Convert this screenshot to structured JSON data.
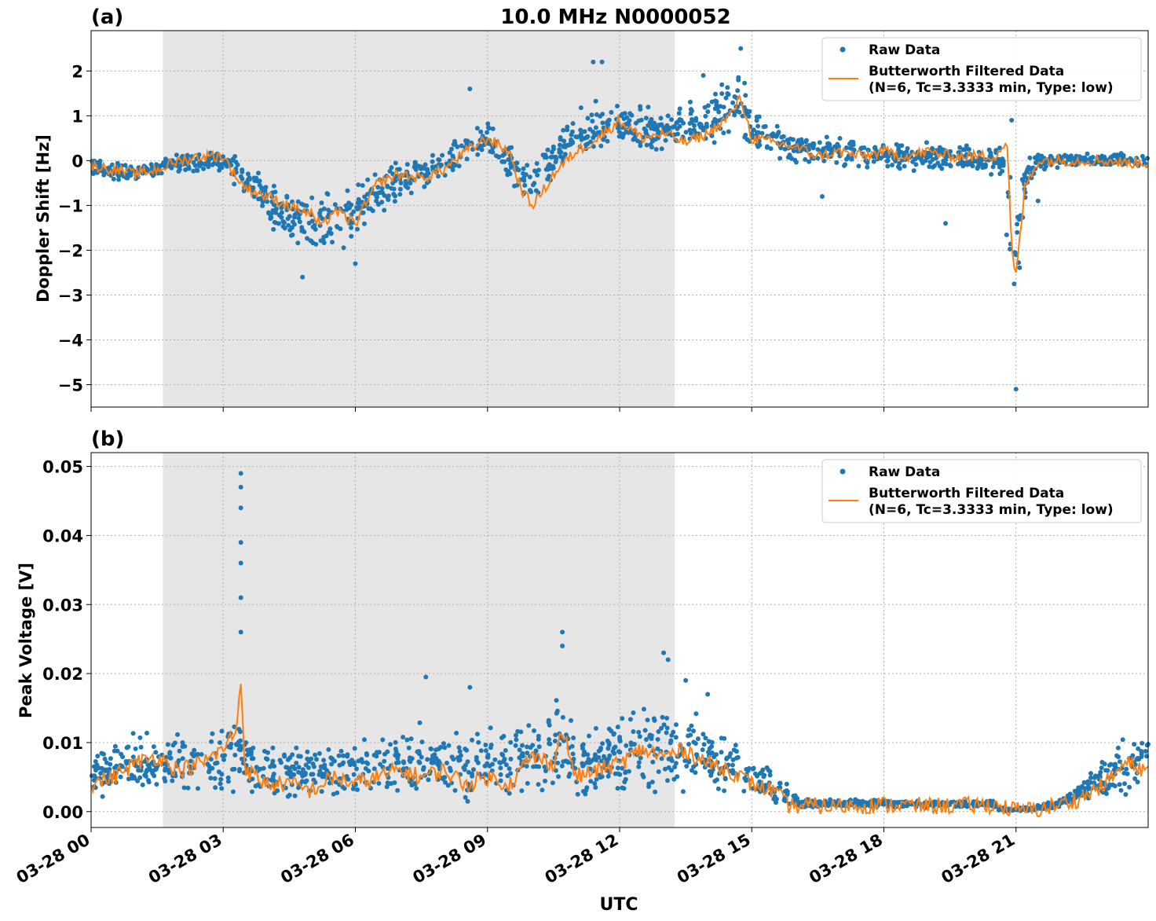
{
  "figure": {
    "title": "10.0 MHz N0000052",
    "xlabel": "UTC",
    "x_ticks": [
      "03-28 00",
      "03-28 03",
      "03-28 06",
      "03-28 09",
      "03-28 12",
      "03-28 15",
      "03-28 18",
      "03-28 21"
    ],
    "shaded_region_hours": [
      1.63,
      13.25
    ],
    "colors": {
      "raw": "#1f77b4",
      "filtered": "#ff7f0e",
      "shade": "#e6e6e6",
      "grid": "#b0b0b0"
    }
  },
  "chart_data": [
    {
      "panel_label": "(a)",
      "type": "scatter",
      "ylabel": "Doppler Shift [Hz]",
      "xlim_hours": [
        0,
        24
      ],
      "ylim": [
        -5.5,
        2.9
      ],
      "y_ticks": [
        2,
        1,
        0,
        -1,
        -2,
        -3,
        -4,
        -5
      ],
      "y_tick_labels": [
        "2",
        "1",
        "0",
        "−1",
        "−2",
        "−3",
        "−4",
        "−5"
      ],
      "grid": true,
      "legend_position": "upper right",
      "legend": {
        "raw": "Raw Data",
        "filtered_line1": "Butterworth Filtered Data",
        "filtered_line2": "(N=6, Tc=3.3333 min, Type: low)"
      },
      "series": [
        {
          "name": "Butterworth Filtered Data",
          "x": [
            0,
            0.5,
            1,
            1.5,
            2,
            2.5,
            3,
            3.25,
            3.5,
            4,
            4.5,
            5,
            5.25,
            5.5,
            6,
            6.5,
            7,
            7.5,
            8,
            8.5,
            9,
            9.5,
            9.75,
            10,
            10.25,
            10.5,
            11,
            11.5,
            12,
            12.5,
            13,
            13.5,
            14,
            14.5,
            14.75,
            15,
            15.5,
            16,
            16.5,
            17,
            17.5,
            18,
            18.5,
            19,
            19.5,
            20,
            20.5,
            20.8,
            20.9,
            21,
            21.1,
            21.2,
            21.5,
            22,
            22.5,
            23,
            23.5,
            24
          ],
          "y": [
            -0.1,
            -0.2,
            -0.3,
            -0.2,
            0.0,
            0.1,
            0.1,
            -0.3,
            -0.6,
            -0.8,
            -1.0,
            -1.2,
            -1.5,
            -1.1,
            -1.4,
            -0.5,
            -0.3,
            -0.4,
            -0.2,
            0.2,
            0.5,
            0.2,
            -0.6,
            -1.0,
            -0.7,
            -0.3,
            0.2,
            0.5,
            0.9,
            0.5,
            0.6,
            0.4,
            0.6,
            1.0,
            1.4,
            0.5,
            0.4,
            0.3,
            0.1,
            0.2,
            0.1,
            0.2,
            0.1,
            0.2,
            0.1,
            0.1,
            0.1,
            0.4,
            -2.0,
            -2.6,
            -1.6,
            -0.6,
            0.0,
            0.0,
            0.0,
            0.0,
            -0.05,
            -0.05
          ]
        },
        {
          "name": "Raw Data",
          "envelope_x": [
            0,
            1,
            2,
            3,
            3.5,
            4,
            5,
            5.5,
            6,
            7,
            8,
            9,
            9.75,
            10,
            10.5,
            11,
            11.5,
            12,
            12.5,
            13,
            14,
            14.75,
            15,
            16,
            17,
            18,
            19,
            20,
            20.7,
            20.9,
            21,
            21.2,
            21.5,
            22,
            23,
            24
          ],
          "envelope_low": [
            -0.4,
            -0.6,
            -0.3,
            -0.3,
            -1.0,
            -1.6,
            -2.5,
            -2.2,
            -2.0,
            -1.0,
            -0.6,
            0.0,
            -1.1,
            -1.1,
            -0.5,
            -0.1,
            0.0,
            0.3,
            0.1,
            0.2,
            0.2,
            0.2,
            0.0,
            -0.2,
            -0.2,
            -0.3,
            -0.3,
            -0.3,
            -0.4,
            -4.8,
            -4.0,
            -1.0,
            -0.3,
            -0.2,
            -0.2,
            -0.2
          ],
          "envelope_high": [
            0.15,
            0.0,
            0.2,
            0.3,
            0.2,
            -0.3,
            -0.5,
            -0.5,
            -0.4,
            0.2,
            0.4,
            1.0,
            0.4,
            0.0,
            0.6,
            1.2,
            1.5,
            1.3,
            1.3,
            1.2,
            1.6,
            2.3,
            1.2,
            0.8,
            0.6,
            0.5,
            0.5,
            0.4,
            0.5,
            0.9,
            -0.5,
            0.1,
            0.3,
            0.25,
            0.2,
            0.2
          ],
          "outliers_x": [
            14.75,
            13.9,
            11.4,
            11.6,
            21.0,
            8.6,
            20.9,
            6.0,
            4.8,
            19.4,
            16.6,
            21.5
          ],
          "outliers_y": [
            2.5,
            1.9,
            2.2,
            2.2,
            -5.1,
            1.6,
            0.9,
            -2.3,
            -2.6,
            -1.4,
            -0.8,
            -0.9
          ]
        }
      ]
    },
    {
      "panel_label": "(b)",
      "type": "scatter",
      "ylabel": "Peak Voltage [V]",
      "xlim_hours": [
        0,
        24
      ],
      "ylim": [
        -0.0023,
        0.052
      ],
      "y_ticks": [
        0.05,
        0.04,
        0.03,
        0.02,
        0.01,
        0.0
      ],
      "y_tick_labels": [
        "0.05",
        "0.04",
        "0.03",
        "0.02",
        "0.01",
        "0.00"
      ],
      "grid": true,
      "legend_position": "upper right",
      "legend": {
        "raw": "Raw Data",
        "filtered_line1": "Butterworth Filtered Data",
        "filtered_line2": "(N=6, Tc=3.3333 min, Type: low)"
      },
      "series": [
        {
          "name": "Butterworth Filtered Data",
          "x": [
            0,
            0.5,
            1,
            1.5,
            2,
            2.5,
            3,
            3.3,
            3.4,
            3.5,
            4,
            4.5,
            5,
            5.5,
            6,
            6.5,
            7,
            7.5,
            8,
            8.5,
            9,
            9.5,
            10,
            10.5,
            10.7,
            11,
            11.5,
            12,
            12.5,
            13,
            13.5,
            14,
            14.5,
            15,
            15.5,
            15.8,
            16,
            16.5,
            17,
            18,
            19,
            20,
            20.5,
            21,
            21.5,
            22,
            22.5,
            23,
            23.5,
            24
          ],
          "y": [
            0.004,
            0.005,
            0.007,
            0.008,
            0.006,
            0.007,
            0.009,
            0.012,
            0.019,
            0.006,
            0.004,
            0.004,
            0.003,
            0.005,
            0.004,
            0.005,
            0.006,
            0.005,
            0.006,
            0.004,
            0.005,
            0.004,
            0.008,
            0.007,
            0.012,
            0.005,
            0.006,
            0.007,
            0.009,
            0.008,
            0.009,
            0.007,
            0.006,
            0.004,
            0.003,
            0.001,
            0.0008,
            0.0008,
            0.0008,
            0.001,
            0.0008,
            0.0009,
            0.001,
            0.0002,
            0.0003,
            0.001,
            0.002,
            0.004,
            0.007,
            0.006
          ]
        },
        {
          "name": "Raw Data",
          "envelope_x": [
            0,
            1,
            2,
            3,
            3.4,
            3.5,
            4,
            5,
            6,
            7,
            8,
            9,
            10,
            10.7,
            11,
            12,
            13,
            13.5,
            14,
            14.5,
            15,
            15.5,
            15.9,
            16.1,
            17,
            18,
            19,
            20,
            20.5,
            20.6,
            21,
            21.5,
            22,
            22.5,
            23,
            23.5,
            24
          ],
          "envelope_low": [
            0.001,
            0.001,
            0.001,
            0.001,
            0.001,
            0.001,
            0.001,
            0.001,
            0.001,
            0.001,
            0.001,
            0.001,
            0.001,
            0.001,
            0.001,
            0.001,
            0.001,
            0.001,
            0.0015,
            0.0015,
            0.001,
            0.0005,
            0.0,
            0.0003,
            0.0004,
            0.0004,
            0.0004,
            0.0004,
            0.0005,
            0.0,
            0.0,
            0.0,
            0.0003,
            0.001,
            0.001,
            0.001,
            0.001
          ],
          "envelope_high": [
            0.01,
            0.012,
            0.013,
            0.014,
            0.02,
            0.012,
            0.011,
            0.01,
            0.011,
            0.014,
            0.013,
            0.013,
            0.016,
            0.019,
            0.013,
            0.015,
            0.019,
            0.017,
            0.014,
            0.013,
            0.009,
            0.006,
            0.004,
            0.002,
            0.002,
            0.002,
            0.0018,
            0.0018,
            0.0018,
            0.0006,
            0.0006,
            0.001,
            0.002,
            0.005,
            0.009,
            0.012,
            0.014
          ],
          "outliers_x": [
            3.4,
            3.4,
            3.4,
            3.4,
            3.4,
            3.4,
            3.4,
            10.7,
            10.7,
            13.0,
            13.1,
            7.6,
            8.6,
            13.5,
            14.0
          ],
          "outliers_y": [
            0.049,
            0.047,
            0.044,
            0.039,
            0.036,
            0.031,
            0.026,
            0.026,
            0.024,
            0.023,
            0.022,
            0.0195,
            0.018,
            0.019,
            0.017
          ]
        }
      ]
    }
  ]
}
